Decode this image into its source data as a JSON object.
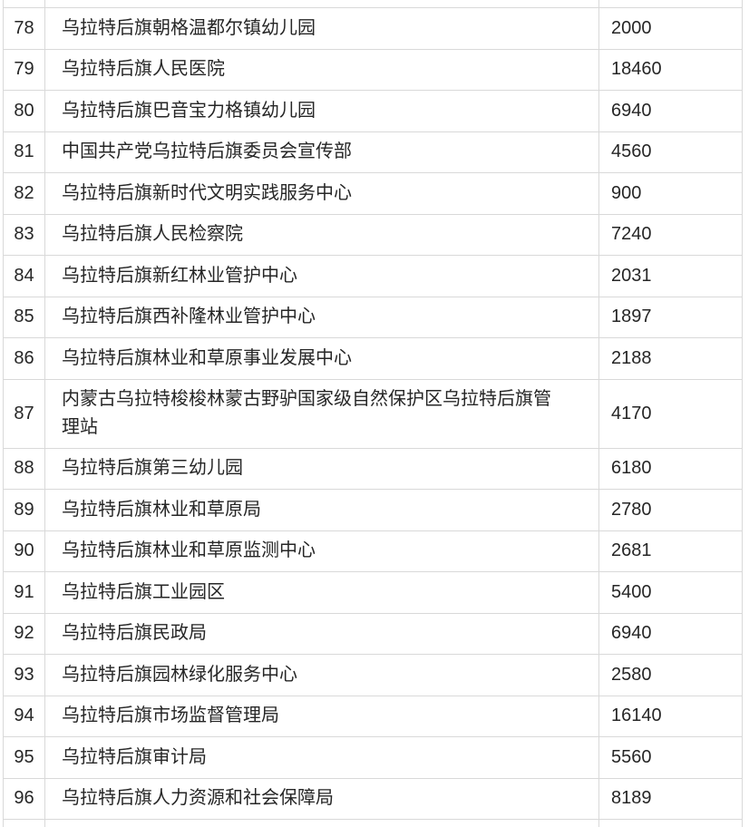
{
  "page": {
    "background_color": "#ffffff",
    "border_color": "#d9d9d9",
    "text_color": "#262626"
  },
  "table": {
    "rows": [
      {
        "no": "78",
        "name": "乌拉特后旗朝格温都尔镇幼儿园",
        "value": "2000"
      },
      {
        "no": "79",
        "name": "乌拉特后旗人民医院",
        "value": "18460"
      },
      {
        "no": "80",
        "name": "乌拉特后旗巴音宝力格镇幼儿园",
        "value": "6940"
      },
      {
        "no": "81",
        "name": "中国共产党乌拉特后旗委员会宣传部",
        "value": "4560"
      },
      {
        "no": "82",
        "name": "乌拉特后旗新时代文明实践服务中心",
        "value": "900"
      },
      {
        "no": "83",
        "name": "乌拉特后旗人民检察院",
        "value": "7240"
      },
      {
        "no": "84",
        "name": "乌拉特后旗新红林业管护中心",
        "value": "2031"
      },
      {
        "no": "85",
        "name": "乌拉特后旗西补隆林业管护中心",
        "value": "1897"
      },
      {
        "no": "86",
        "name": "乌拉特后旗林业和草原事业发展中心",
        "value": "2188"
      },
      {
        "no": "87",
        "name": "内蒙古乌拉特梭梭林蒙古野驴国家级自然保护区乌拉特后旗管理站",
        "value": "4170",
        "tall": true
      },
      {
        "no": "88",
        "name": "乌拉特后旗第三幼儿园",
        "value": "6180"
      },
      {
        "no": "89",
        "name": "乌拉特后旗林业和草原局",
        "value": "2780"
      },
      {
        "no": "90",
        "name": "乌拉特后旗林业和草原监测中心",
        "value": "2681"
      },
      {
        "no": "91",
        "name": "乌拉特后旗工业园区",
        "value": "5400"
      },
      {
        "no": "92",
        "name": "乌拉特后旗民政局",
        "value": "6940"
      },
      {
        "no": "93",
        "name": "乌拉特后旗园林绿化服务中心",
        "value": "2580"
      },
      {
        "no": "94",
        "name": "乌拉特后旗市场监督管理局",
        "value": "16140"
      },
      {
        "no": "95",
        "name": "乌拉特后旗审计局",
        "value": "5560"
      },
      {
        "no": "96",
        "name": "乌拉特后旗人力资源和社会保障局",
        "value": "8189"
      }
    ]
  }
}
